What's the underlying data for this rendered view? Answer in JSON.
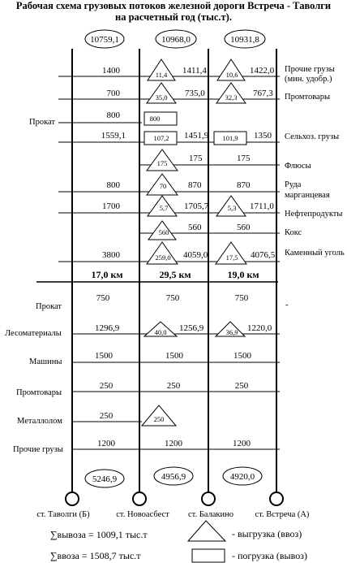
{
  "title": {
    "line1": "Рабочая схема грузовых потоков железной дороги Встреча - Таволги",
    "line2": "на расчетный год (тыс.т)."
  },
  "totals_top": [
    "10759,1",
    "10968,0",
    "10931,8"
  ],
  "totals_bottom": [
    "5246,9",
    "4956,9",
    "4920,0"
  ],
  "distances": [
    "17,0 км",
    "29,5 км",
    "19,0 км"
  ],
  "stations": [
    "ст. Таволги (Б)",
    "ст. Новоасбест",
    "ст. Балакино",
    "ст. Встреча (А)"
  ],
  "upper_rows": [
    {
      "right": "Прочие грузы (мин. удобр.)",
      "right2": "(мин. удобр.)",
      "right1": "Прочие грузы",
      "v1": "1400",
      "v2": "1411,4",
      "v3": "1422,0",
      "m1": "11,4",
      "m2": "10,6"
    },
    {
      "right1": "Промтовары",
      "v1": "700",
      "v2": "735,0",
      "v3": "767,3",
      "m1": "35,0",
      "m2": "32,3"
    },
    {
      "left": "Прокат",
      "v1": "800",
      "m1": "800"
    },
    {
      "right1": "Сельхоз. грузы",
      "v1": "1559,1",
      "v2": "1451,9",
      "v3": "1350",
      "m1": "107,2",
      "m2": "101,9"
    },
    {
      "right1": "Флюсы",
      "v2": "175",
      "v3": "175",
      "m1": "175"
    },
    {
      "right1": "Руда",
      "right2": "марганцевая",
      "v1": "800",
      "v2": "870",
      "v3": "870",
      "m1": "70"
    },
    {
      "right1": "Нефтепродукты",
      "v1": "1700",
      "v2": "1705,7",
      "v3": "1711,0",
      "m1": "5,7",
      "m2": "5,3"
    },
    {
      "right1": "Кокс",
      "v2": "560",
      "v3": "560",
      "m1": "560"
    },
    {
      "right1": "Каменный уголь",
      "v1": "3800",
      "v2": "4059,0",
      "v3": "4076,5",
      "m1": "259,0",
      "m2": "17,5"
    }
  ],
  "lower_rows": [
    {
      "left": "Прокат",
      "v1": "750",
      "v2": "750",
      "v3": "750",
      "right": "-"
    },
    {
      "left": "Лесоматериалы",
      "v1": "1296,9",
      "v2": "1256,9",
      "v3": "1220,0",
      "m1": "40,0",
      "m2": "36,9"
    },
    {
      "left": "Машины",
      "v1": "1500",
      "v2": "1500",
      "v3": "1500"
    },
    {
      "left": "Промтовары",
      "v1": "250",
      "v2": "250",
      "v3": "250"
    },
    {
      "left": "Металлолом",
      "v1": "250",
      "m1": "250"
    },
    {
      "left": "Прочие грузы",
      "v1": "1200",
      "v2": "1200",
      "v3": "1200"
    }
  ],
  "legend": {
    "vyvoz": "∑вывоза = 1009,1 тыс.т",
    "vvoz": "∑ввоза = 1508,7 тыс.т",
    "triangle_label": "- выгрузка (ввоз)",
    "rect_label": "- погрузка (вывоз)"
  }
}
